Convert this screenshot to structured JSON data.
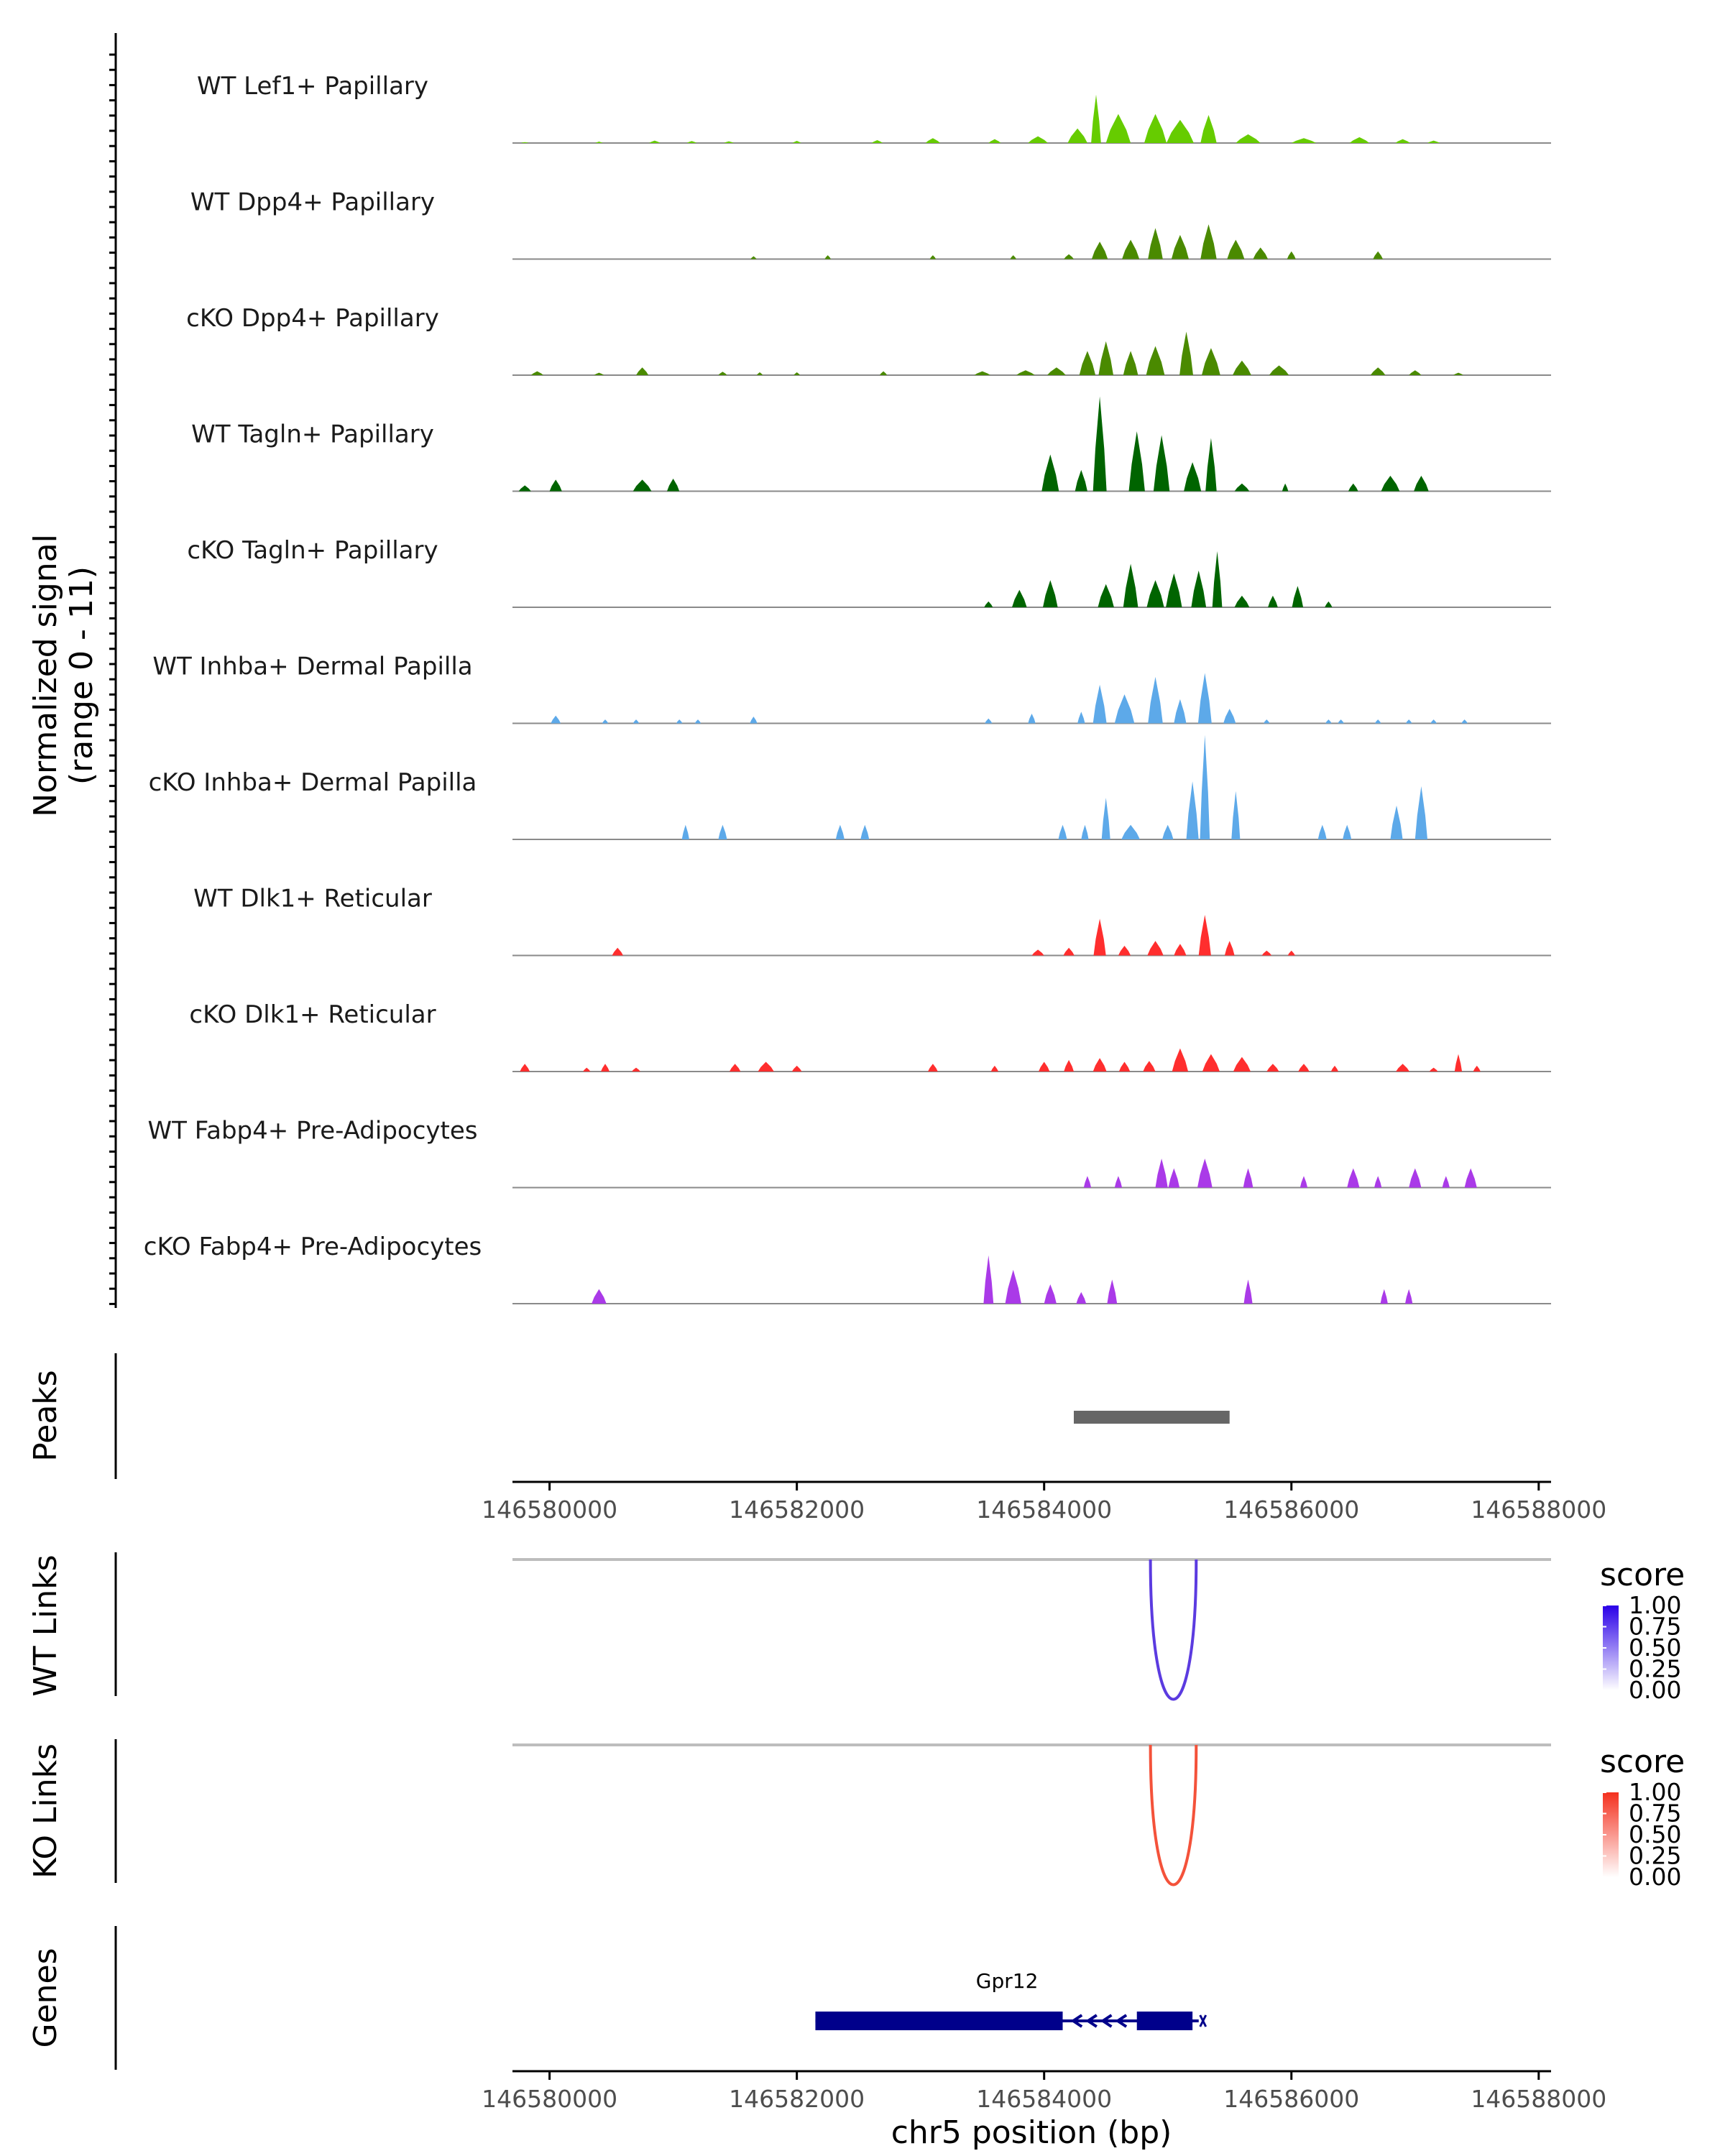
{
  "chart_data": {
    "type": "area",
    "title": "",
    "region": "chr5",
    "xlabel": "chr5 position (bp)",
    "xlim": [
      146579700,
      146588100
    ],
    "x_ticks": [
      146580000,
      146582000,
      146584000,
      146586000,
      146588000
    ],
    "x_tick_labels": [
      "146580000",
      "146582000",
      "146584000",
      "146586000",
      "146588000"
    ],
    "coverage": {
      "ylabel_line1": "Normalized signal",
      "ylabel_line2": "(range 0 - 11)",
      "ylim": [
        0,
        11
      ],
      "tracks": [
        {
          "label": "WT Lef1+ Papillary",
          "color": "#66CC00",
          "peaks": [
            [
              146579800,
              0.1,
              60
            ],
            [
              146580400,
              0.15,
              60
            ],
            [
              146580850,
              0.25,
              90
            ],
            [
              146581150,
              0.2,
              80
            ],
            [
              146581450,
              0.18,
              80
            ],
            [
              146582000,
              0.22,
              70
            ],
            [
              146582650,
              0.3,
              90
            ],
            [
              146583100,
              0.5,
              120
            ],
            [
              146583600,
              0.4,
              100
            ],
            [
              146583950,
              0.7,
              160
            ],
            [
              146584270,
              1.5,
              160
            ],
            [
              146584420,
              5.0,
              80
            ],
            [
              146584600,
              3.0,
              200
            ],
            [
              146584900,
              3.0,
              180
            ],
            [
              146585100,
              2.4,
              220
            ],
            [
              146585330,
              2.9,
              130
            ],
            [
              146585650,
              0.9,
              200
            ],
            [
              146586100,
              0.5,
              200
            ],
            [
              146586550,
              0.6,
              160
            ],
            [
              146586900,
              0.4,
              120
            ],
            [
              146587150,
              0.25,
              100
            ]
          ]
        },
        {
          "label": "WT Dpp4+ Papillary",
          "color": "#4A8A00",
          "peaks": [
            [
              146581650,
              0.3,
              50
            ],
            [
              146582250,
              0.4,
              50
            ],
            [
              146583100,
              0.4,
              50
            ],
            [
              146583750,
              0.4,
              50
            ],
            [
              146584200,
              0.5,
              80
            ],
            [
              146584450,
              1.8,
              130
            ],
            [
              146584700,
              2.0,
              140
            ],
            [
              146584900,
              3.2,
              120
            ],
            [
              146585100,
              2.5,
              140
            ],
            [
              146585330,
              3.6,
              130
            ],
            [
              146585550,
              2.0,
              140
            ],
            [
              146585750,
              1.2,
              120
            ],
            [
              146586000,
              0.8,
              70
            ],
            [
              146586700,
              0.8,
              80
            ]
          ]
        },
        {
          "label": "cKO Dpp4+ Papillary",
          "color": "#4A8A00",
          "peaks": [
            [
              146579900,
              0.4,
              100
            ],
            [
              146580400,
              0.25,
              80
            ],
            [
              146580750,
              0.8,
              100
            ],
            [
              146581400,
              0.35,
              70
            ],
            [
              146581700,
              0.3,
              50
            ],
            [
              146582000,
              0.3,
              50
            ],
            [
              146582700,
              0.4,
              60
            ],
            [
              146583500,
              0.4,
              130
            ],
            [
              146583850,
              0.5,
              150
            ],
            [
              146584100,
              0.8,
              150
            ],
            [
              146584350,
              2.5,
              130
            ],
            [
              146584500,
              3.5,
              120
            ],
            [
              146584700,
              2.5,
              120
            ],
            [
              146584900,
              3.0,
              150
            ],
            [
              146585150,
              4.5,
              110
            ],
            [
              146585350,
              2.8,
              150
            ],
            [
              146585600,
              1.5,
              150
            ],
            [
              146585900,
              1.0,
              160
            ],
            [
              146586700,
              0.8,
              120
            ],
            [
              146587000,
              0.5,
              100
            ],
            [
              146587350,
              0.25,
              80
            ]
          ]
        },
        {
          "label": "WT Tagln+ Papillary",
          "color": "#006400",
          "peaks": [
            [
              146579800,
              0.6,
              100
            ],
            [
              146580050,
              1.2,
              100
            ],
            [
              146580750,
              1.2,
              150
            ],
            [
              146581000,
              1.3,
              100
            ],
            [
              146584050,
              3.8,
              140
            ],
            [
              146584300,
              2.2,
              100
            ],
            [
              146584450,
              9.8,
              110
            ],
            [
              146584750,
              6.2,
              130
            ],
            [
              146584950,
              5.8,
              130
            ],
            [
              146585200,
              3.0,
              140
            ],
            [
              146585350,
              5.5,
              90
            ],
            [
              146585600,
              0.8,
              120
            ],
            [
              146585950,
              0.8,
              50
            ],
            [
              146586500,
              0.8,
              80
            ],
            [
              146586800,
              1.6,
              150
            ],
            [
              146587050,
              1.6,
              120
            ]
          ]
        },
        {
          "label": "cKO Tagln+ Papillary",
          "color": "#006400",
          "peaks": [
            [
              146583550,
              0.6,
              70
            ],
            [
              146583800,
              1.8,
              120
            ],
            [
              146584050,
              2.8,
              120
            ],
            [
              146584500,
              2.4,
              130
            ],
            [
              146584700,
              4.5,
              120
            ],
            [
              146584900,
              2.8,
              140
            ],
            [
              146585050,
              3.5,
              130
            ],
            [
              146585250,
              3.8,
              120
            ],
            [
              146585400,
              5.8,
              80
            ],
            [
              146585600,
              1.2,
              120
            ],
            [
              146585850,
              1.2,
              80
            ],
            [
              146586050,
              2.2,
              90
            ],
            [
              146586300,
              0.6,
              60
            ]
          ]
        },
        {
          "label": "WT Inhba+ Dermal Papilla",
          "color": "#5DA9E9",
          "peaks": [
            [
              146580050,
              0.8,
              80
            ],
            [
              146580450,
              0.4,
              50
            ],
            [
              146580700,
              0.4,
              50
            ],
            [
              146581050,
              0.4,
              50
            ],
            [
              146581200,
              0.4,
              50
            ],
            [
              146581650,
              0.7,
              60
            ],
            [
              146583550,
              0.5,
              60
            ],
            [
              146583900,
              1.0,
              60
            ],
            [
              146584300,
              1.2,
              60
            ],
            [
              146584450,
              4.0,
              110
            ],
            [
              146584650,
              3.0,
              160
            ],
            [
              146584900,
              4.8,
              120
            ],
            [
              146585100,
              2.5,
              100
            ],
            [
              146585300,
              5.2,
              110
            ],
            [
              146585500,
              1.5,
              100
            ],
            [
              146585800,
              0.4,
              50
            ],
            [
              146586300,
              0.4,
              50
            ],
            [
              146586400,
              0.4,
              50
            ],
            [
              146586700,
              0.4,
              50
            ],
            [
              146586950,
              0.4,
              50
            ],
            [
              146587150,
              0.4,
              50
            ],
            [
              146587400,
              0.4,
              50
            ]
          ]
        },
        {
          "label": "cKO Inhba+ Dermal Papilla",
          "color": "#5DA9E9",
          "peaks": [
            [
              146581100,
              1.5,
              60
            ],
            [
              146581400,
              1.5,
              70
            ],
            [
              146582350,
              1.5,
              70
            ],
            [
              146582550,
              1.5,
              70
            ],
            [
              146584150,
              1.5,
              70
            ],
            [
              146584330,
              1.5,
              60
            ],
            [
              146584500,
              4.3,
              70
            ],
            [
              146584700,
              1.5,
              150
            ],
            [
              146585000,
              1.5,
              90
            ],
            [
              146585200,
              6.0,
              100
            ],
            [
              146585300,
              10.8,
              80
            ],
            [
              146585550,
              5.0,
              70
            ],
            [
              146586250,
              1.5,
              70
            ],
            [
              146586450,
              1.5,
              70
            ],
            [
              146586850,
              3.5,
              100
            ],
            [
              146587050,
              5.5,
              100
            ]
          ]
        },
        {
          "label": "WT Dlk1+ Reticular",
          "color": "#FF2E2E",
          "peaks": [
            [
              146580550,
              0.8,
              90
            ],
            [
              146583950,
              0.6,
              100
            ],
            [
              146584200,
              0.8,
              90
            ],
            [
              146584450,
              3.8,
              100
            ],
            [
              146584650,
              1.0,
              100
            ],
            [
              146584900,
              1.5,
              130
            ],
            [
              146585100,
              1.2,
              100
            ],
            [
              146585300,
              4.2,
              100
            ],
            [
              146585500,
              1.5,
              80
            ],
            [
              146585800,
              0.5,
              80
            ],
            [
              146586000,
              0.5,
              60
            ]
          ]
        },
        {
          "label": "cKO Dlk1+ Reticular",
          "color": "#FF2E2E",
          "peaks": [
            [
              146579800,
              0.8,
              80
            ],
            [
              146580300,
              0.4,
              60
            ],
            [
              146580450,
              0.8,
              70
            ],
            [
              146580700,
              0.4,
              70
            ],
            [
              146581500,
              0.8,
              90
            ],
            [
              146581750,
              1.0,
              130
            ],
            [
              146582000,
              0.6,
              80
            ],
            [
              146583100,
              0.8,
              80
            ],
            [
              146583600,
              0.6,
              60
            ],
            [
              146584000,
              1.0,
              90
            ],
            [
              146584200,
              1.2,
              80
            ],
            [
              146584450,
              1.4,
              110
            ],
            [
              146584650,
              1.0,
              90
            ],
            [
              146584850,
              1.1,
              100
            ],
            [
              146585100,
              2.4,
              130
            ],
            [
              146585350,
              1.8,
              140
            ],
            [
              146585600,
              1.5,
              140
            ],
            [
              146585850,
              0.8,
              100
            ],
            [
              146586100,
              0.8,
              90
            ],
            [
              146586350,
              0.6,
              60
            ],
            [
              146586900,
              0.8,
              110
            ],
            [
              146587150,
              0.4,
              70
            ],
            [
              146587350,
              1.8,
              60
            ],
            [
              146587500,
              0.6,
              60
            ]
          ]
        },
        {
          "label": "WT Fabp4+ Pre-Adipocytes",
          "color": "#AA3AE8",
          "peaks": [
            [
              146584350,
              1.2,
              60
            ],
            [
              146584600,
              1.2,
              60
            ],
            [
              146584950,
              3.0,
              100
            ],
            [
              146585050,
              2.0,
              90
            ],
            [
              146585300,
              3.0,
              120
            ],
            [
              146585650,
              2.0,
              80
            ],
            [
              146586100,
              1.2,
              60
            ],
            [
              146586500,
              2.0,
              100
            ],
            [
              146586700,
              1.2,
              60
            ],
            [
              146587000,
              2.0,
              100
            ],
            [
              146587250,
              1.2,
              60
            ],
            [
              146587450,
              2.0,
              100
            ]
          ]
        },
        {
          "label": "cKO Fabp4+ Pre-Adipocytes",
          "color": "#AA3AE8",
          "peaks": [
            [
              146580400,
              1.5,
              120
            ],
            [
              146583550,
              5.0,
              80
            ],
            [
              146583750,
              3.5,
              130
            ],
            [
              146584050,
              2.0,
              100
            ],
            [
              146584300,
              1.2,
              80
            ],
            [
              146584550,
              2.5,
              80
            ],
            [
              146585650,
              2.5,
              70
            ],
            [
              146586750,
              1.5,
              60
            ],
            [
              146586950,
              1.5,
              60
            ]
          ]
        }
      ]
    },
    "peaks_track": {
      "ylabel": "Peaks",
      "regions": [
        [
          146584240,
          146585500
        ]
      ]
    },
    "links_tracks": [
      {
        "ylabel": "WT Links",
        "legend_title": "score",
        "color": "#5B3BE0",
        "gradient_top": "#2A00E8",
        "start": 146584860,
        "end": 146585230,
        "score": 1.0,
        "legend_ticks": [
          "1.00",
          "0.75",
          "0.50",
          "0.25",
          "0.00"
        ]
      },
      {
        "ylabel": "KO Links",
        "legend_title": "score",
        "color": "#F4523A",
        "gradient_top": "#F4301E",
        "start": 146584860,
        "end": 146585230,
        "score": 1.0,
        "legend_ticks": [
          "1.00",
          "0.75",
          "0.50",
          "0.25",
          "0.00"
        ]
      }
    ],
    "genes_track": {
      "ylabel": "Genes",
      "gene_name": "Gpr12",
      "color": "#00008B",
      "start": 146582150,
      "end": 146585250,
      "strand": "-",
      "exons": [
        [
          146582150,
          146584150
        ],
        [
          146584750,
          146585200
        ]
      ]
    }
  }
}
